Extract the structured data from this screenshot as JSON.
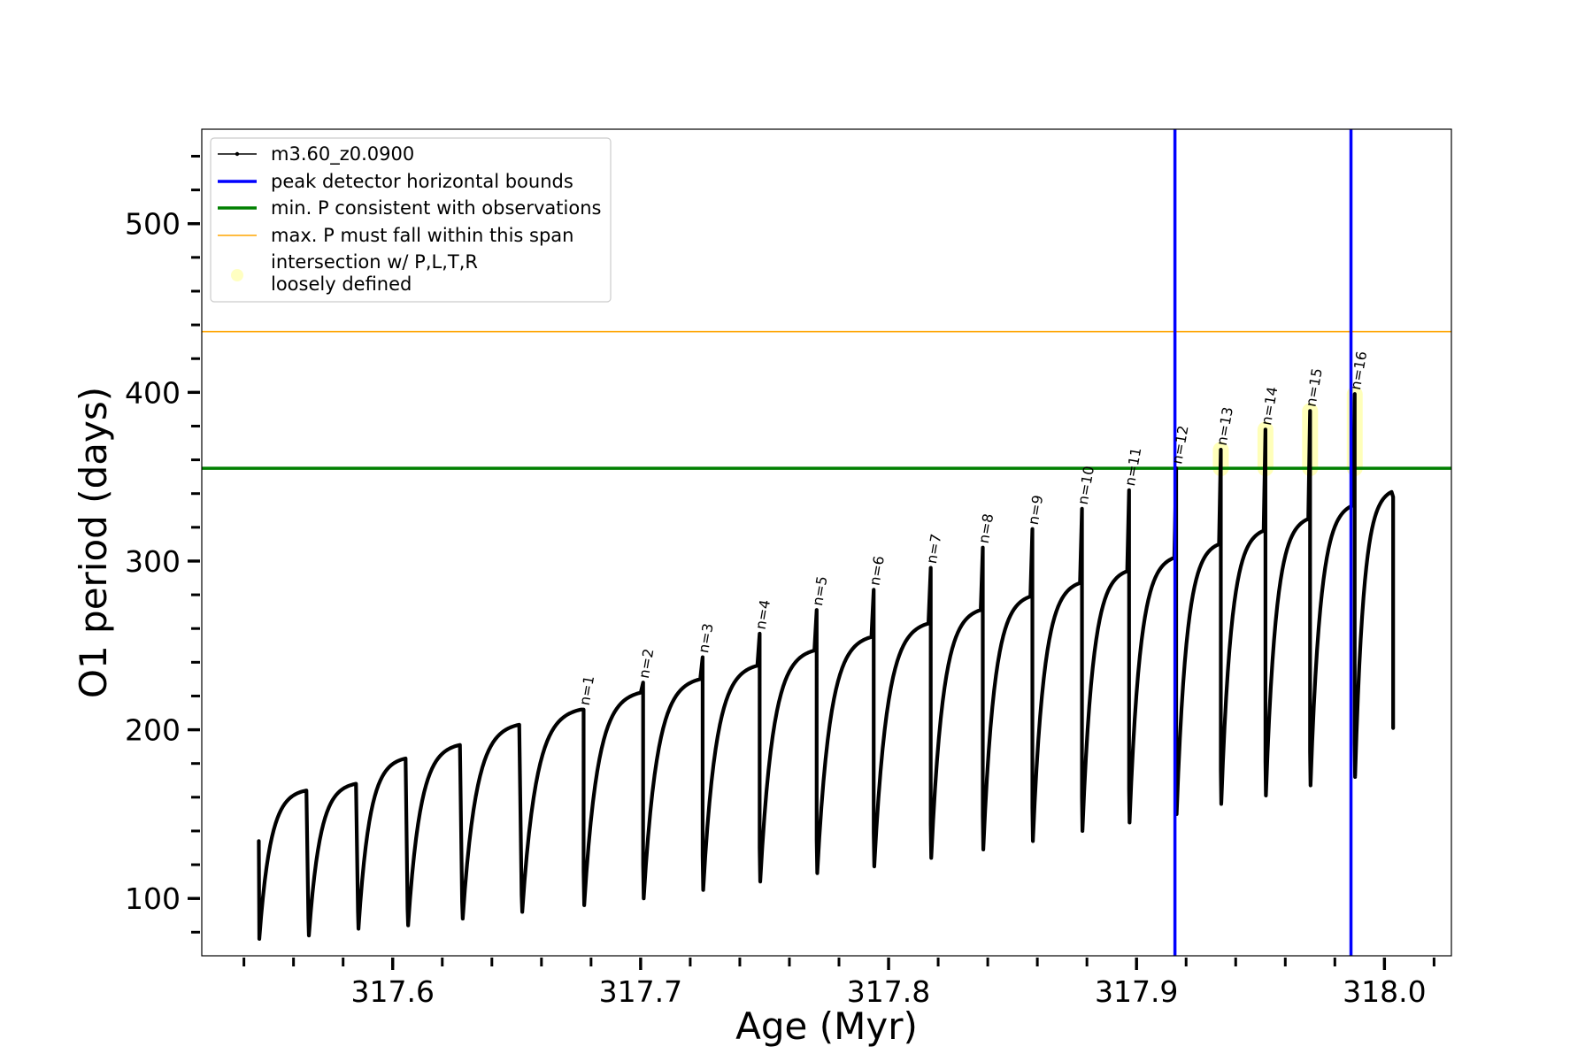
{
  "chart_data": {
    "type": "line",
    "title": "",
    "xlabel": "Age (Myr)",
    "ylabel": "O1 period (days)",
    "xlim": [
      317.523,
      318.027
    ],
    "ylim": [
      66,
      556
    ],
    "xticks": [
      317.6,
      317.7,
      317.8,
      317.9,
      318.0
    ],
    "xtick_labels": [
      "317.6",
      "317.7",
      "317.8",
      "317.9",
      "318.0"
    ],
    "yticks": [
      100,
      200,
      300,
      400,
      500
    ],
    "ytick_labels": [
      "100",
      "200",
      "300",
      "400",
      "500"
    ],
    "series": [
      {
        "name": "m3.60_z0.0900",
        "color": "#000000",
        "start": 317.546,
        "start_period": 134,
        "pulses": [
          {
            "t": 317.546,
            "trough": 76,
            "peak": 164,
            "spike": null
          },
          {
            "t": 317.566,
            "trough": 78,
            "peak": 168,
            "spike": null
          },
          {
            "t": 317.586,
            "trough": 82,
            "peak": 183,
            "spike": null
          },
          {
            "t": 317.606,
            "trough": 84,
            "peak": 191,
            "spike": null
          },
          {
            "t": 317.628,
            "trough": 88,
            "peak": 203,
            "spike": null
          },
          {
            "t": 317.652,
            "trough": 92,
            "peak": 212,
            "spike": null
          },
          {
            "t": 317.677,
            "trough": 96,
            "peak": 222,
            "spike": 212
          },
          {
            "t": 317.701,
            "trough": 100,
            "peak": 230,
            "spike": 228
          },
          {
            "t": 317.725,
            "trough": 105,
            "peak": 238,
            "spike": 243
          },
          {
            "t": 317.748,
            "trough": 110,
            "peak": 247,
            "spike": 257
          },
          {
            "t": 317.771,
            "trough": 115,
            "peak": 255,
            "spike": 271
          },
          {
            "t": 317.794,
            "trough": 119,
            "peak": 263,
            "spike": 283
          },
          {
            "t": 317.817,
            "trough": 124,
            "peak": 271,
            "spike": 296
          },
          {
            "t": 317.838,
            "trough": 129,
            "peak": 279,
            "spike": 308
          },
          {
            "t": 317.858,
            "trough": 134,
            "peak": 287,
            "spike": 319
          },
          {
            "t": 317.878,
            "trough": 140,
            "peak": 294,
            "spike": 331
          },
          {
            "t": 317.897,
            "trough": 145,
            "peak": 302,
            "spike": 342
          },
          {
            "t": 317.916,
            "trough": 150,
            "peak": 310,
            "spike": 355
          },
          {
            "t": 317.934,
            "trough": 156,
            "peak": 318,
            "spike": 366
          },
          {
            "t": 317.952,
            "trough": 161,
            "peak": 325,
            "spike": 378
          },
          {
            "t": 317.97,
            "trough": 167,
            "peak": 333,
            "spike": 389
          },
          {
            "t": 317.988,
            "trough": 172,
            "peak": 341,
            "spike": 399
          }
        ],
        "end": 318.0035,
        "end_period": 201
      }
    ],
    "peak_labels": [
      {
        "label": "n=1",
        "x": 317.677,
        "y": 212
      },
      {
        "label": "n=2",
        "x": 317.701,
        "y": 228
      },
      {
        "label": "n=3",
        "x": 317.725,
        "y": 243
      },
      {
        "label": "n=4",
        "x": 317.748,
        "y": 257
      },
      {
        "label": "n=5",
        "x": 317.771,
        "y": 271
      },
      {
        "label": "n=6",
        "x": 317.794,
        "y": 283
      },
      {
        "label": "n=7",
        "x": 317.817,
        "y": 296
      },
      {
        "label": "n=8",
        "x": 317.838,
        "y": 308
      },
      {
        "label": "n=9",
        "x": 317.858,
        "y": 319
      },
      {
        "label": "n=10",
        "x": 317.878,
        "y": 331
      },
      {
        "label": "n=11",
        "x": 317.897,
        "y": 342
      },
      {
        "label": "n=12",
        "x": 317.916,
        "y": 355
      },
      {
        "label": "n=13",
        "x": 317.934,
        "y": 366
      },
      {
        "label": "n=14",
        "x": 317.952,
        "y": 378
      },
      {
        "label": "n=15",
        "x": 317.97,
        "y": 389
      },
      {
        "label": "n=16",
        "x": 317.988,
        "y": 399
      }
    ],
    "horizontal_lines": [
      {
        "name": "min. P consistent with observations",
        "y": 355,
        "color": "#008000"
      },
      {
        "name": "max. P must fall within this span",
        "y": 436,
        "color": "#FFA500"
      }
    ],
    "vertical_lines": [
      {
        "name": "peak detector horizontal bounds",
        "x": 317.9155,
        "color": "#0000FF"
      },
      {
        "name": "peak detector horizontal bounds",
        "x": 317.9865,
        "color": "#0000FF"
      }
    ],
    "highlights": [
      {
        "x": 317.934,
        "y_low": 355,
        "y_high": 366
      },
      {
        "x": 317.952,
        "y_low": 355,
        "y_high": 378
      },
      {
        "x": 317.97,
        "y_low": 355,
        "y_high": 389
      },
      {
        "x": 317.988,
        "y_low": 355,
        "y_high": 399
      }
    ],
    "legend": {
      "placement": "top-left",
      "entries": [
        {
          "label": "m3.60_z0.0900",
          "style": "line-marker",
          "color": "#000000"
        },
        {
          "label": "peak detector horizontal bounds",
          "style": "line",
          "color": "#0000FF"
        },
        {
          "label": "min. P consistent with observations",
          "style": "line",
          "color": "#008000"
        },
        {
          "label": "max. P must fall within this span",
          "style": "thin-line",
          "color": "#FFA500"
        },
        {
          "label": "intersection w/ P,L,T,R",
          "label2": "loosely defined",
          "style": "dot",
          "color": "#FFFF99"
        }
      ]
    }
  }
}
